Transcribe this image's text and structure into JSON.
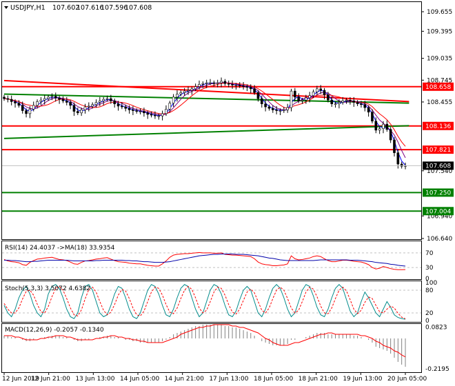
{
  "header": {
    "symbol": "USDJPY,H1",
    "open": "107.602",
    "high": "107.616",
    "low": "107.596",
    "close": "107.608"
  },
  "chart_data": [
    {
      "type": "candlestick",
      "title": "USDJPY,H1",
      "ylim": [
        106.64,
        109.8
      ],
      "y_ticks": [
        "109.655",
        "109.395",
        "109.035",
        "108.745",
        "108.455",
        "107.540",
        "106.940",
        "106.640"
      ],
      "x_ticks": [
        "12 Jun 2019",
        "12 Jun 21:00",
        "13 Jun 13:00",
        "14 Jun 05:00",
        "14 Jun 21:00",
        "17 Jun 13:00",
        "18 Jun 05:00",
        "18 Jun 21:00",
        "19 Jun 13:00",
        "20 Jun 05:00"
      ],
      "close_series": [
        108.5,
        108.49,
        108.46,
        108.44,
        108.41,
        108.34,
        108.3,
        108.36,
        108.41,
        108.46,
        108.48,
        108.5,
        108.52,
        108.53,
        108.51,
        108.49,
        108.47,
        108.45,
        108.41,
        108.33,
        108.31,
        108.35,
        108.39,
        108.4,
        108.42,
        108.45,
        108.47,
        108.49,
        108.5,
        108.47,
        108.43,
        108.4,
        108.39,
        108.37,
        108.35,
        108.34,
        108.33,
        108.33,
        108.31,
        108.29,
        108.28,
        108.27,
        108.27,
        108.3,
        108.36,
        108.44,
        108.52,
        108.56,
        108.58,
        108.6,
        108.61,
        108.63,
        108.66,
        108.69,
        108.7,
        108.71,
        108.71,
        108.7,
        108.71,
        108.73,
        108.7,
        108.69,
        108.68,
        108.68,
        108.67,
        108.66,
        108.65,
        108.63,
        108.58,
        108.5,
        108.43,
        108.39,
        108.37,
        108.35,
        108.34,
        108.34,
        108.35,
        108.38,
        108.6,
        108.52,
        108.47,
        108.48,
        108.51,
        108.54,
        108.59,
        108.63,
        108.61,
        108.55,
        108.48,
        108.43,
        108.43,
        108.45,
        108.47,
        108.48,
        108.47,
        108.45,
        108.43,
        108.42,
        108.38,
        108.32,
        108.2,
        108.08,
        108.1,
        108.16,
        108.09,
        107.95,
        107.78,
        107.63,
        107.6,
        107.608
      ],
      "horizontal_levels": [
        {
          "value": 108.658,
          "label": "108.658",
          "color": "#ff0000"
        },
        {
          "value": 108.136,
          "label": "108.136",
          "color": "#ff0000"
        },
        {
          "value": 107.821,
          "label": "107.821",
          "color": "#ff0000"
        },
        {
          "value": 107.25,
          "label": "107.250",
          "color": "#008000"
        },
        {
          "value": 107.004,
          "label": "107.004",
          "color": "#008000"
        }
      ],
      "current_price": "107.608",
      "trendlines": [
        {
          "color": "#ff0000",
          "points": [
            [
              0,
              108.74
            ],
            [
              110,
              108.46
            ]
          ]
        },
        {
          "color": "#008000",
          "points": [
            [
              0,
              108.56
            ],
            [
              110,
              108.44
            ]
          ]
        },
        {
          "color": "#008000",
          "points": [
            [
              0,
              107.97
            ],
            [
              110,
              108.14
            ]
          ]
        }
      ]
    },
    {
      "type": "line",
      "title": "RSI(14) 24.4037 ->MA(18) 33.9354",
      "ylim": [
        0,
        100
      ],
      "y_ticks": [
        "70",
        "30",
        "0"
      ],
      "series": [
        {
          "name": "RSI(14)",
          "color": "#ff0000",
          "values": [
            52,
            48,
            46,
            45,
            43,
            38,
            36,
            44,
            49,
            53,
            54,
            56,
            57,
            58,
            55,
            52,
            51,
            49,
            45,
            40,
            39,
            44,
            48,
            49,
            51,
            53,
            54,
            56,
            57,
            53,
            49,
            46,
            45,
            44,
            42,
            41,
            40,
            40,
            38,
            36,
            35,
            34,
            34,
            40,
            48,
            58,
            64,
            66,
            67,
            68,
            68,
            69,
            70,
            71,
            70,
            70,
            70,
            69,
            69,
            70,
            66,
            65,
            64,
            64,
            63,
            62,
            61,
            60,
            54,
            45,
            40,
            38,
            37,
            35,
            35,
            36,
            37,
            40,
            62,
            54,
            51,
            52,
            54,
            56,
            60,
            62,
            60,
            54,
            49,
            46,
            46,
            48,
            50,
            50,
            49,
            47,
            46,
            45,
            42,
            38,
            30,
            26,
            28,
            33,
            30,
            27,
            25,
            24,
            24,
            24.4
          ]
        },
        {
          "name": "MA(18)",
          "color": "#0000aa",
          "values": [
            50,
            50,
            49,
            49,
            48,
            47,
            46,
            46,
            47,
            47,
            48,
            49,
            50,
            50,
            50,
            50,
            50,
            50,
            49,
            48,
            48,
            48,
            48,
            48,
            48,
            49,
            49,
            50,
            50,
            50,
            50,
            50,
            50,
            49,
            49,
            48,
            48,
            47,
            46,
            46,
            45,
            44,
            44,
            44,
            45,
            46,
            48,
            50,
            52,
            54,
            56,
            58,
            60,
            62,
            63,
            64,
            65,
            66,
            66,
            67,
            67,
            67,
            67,
            66,
            66,
            66,
            65,
            64,
            63,
            62,
            60,
            58,
            56,
            55,
            53,
            51,
            50,
            49,
            49,
            49,
            49,
            49,
            49,
            49,
            49,
            50,
            51,
            51,
            51,
            51,
            51,
            51,
            51,
            51,
            50,
            50,
            50,
            49,
            48,
            47,
            46,
            44,
            43,
            42,
            41,
            39,
            38,
            36,
            35,
            33.9
          ]
        }
      ]
    },
    {
      "type": "line",
      "title": "Stoch(5,3,3) 3.5072 4.6382",
      "ylim": [
        0,
        100
      ],
      "y_ticks": [
        "100",
        "80",
        "20",
        "0"
      ],
      "series": [
        {
          "name": "Stoch %K",
          "color": "#008b8b",
          "values": [
            40,
            20,
            10,
            30,
            60,
            80,
            90,
            70,
            40,
            20,
            10,
            30,
            70,
            90,
            95,
            85,
            60,
            30,
            10,
            5,
            20,
            60,
            90,
            95,
            80,
            50,
            20,
            10,
            15,
            40,
            70,
            90,
            85,
            60,
            30,
            10,
            5,
            20,
            50,
            80,
            95,
            90,
            70,
            40,
            15,
            10,
            30,
            60,
            85,
            95,
            90,
            60,
            30,
            10,
            20,
            50,
            80,
            95,
            90,
            70,
            40,
            15,
            10,
            25,
            55,
            80,
            90,
            80,
            50,
            20,
            10,
            30,
            60,
            85,
            95,
            85,
            60,
            30,
            10,
            20,
            50,
            80,
            95,
            90,
            65,
            35,
            15,
            10,
            30,
            60,
            85,
            95,
            85,
            55,
            25,
            10,
            20,
            50,
            75,
            60,
            40,
            20,
            10,
            30,
            50,
            35,
            15,
            8,
            5,
            3.5
          ]
        },
        {
          "name": "Stoch %D",
          "color": "#ff0000",
          "values": [
            45,
            30,
            20,
            20,
            33,
            57,
            77,
            80,
            67,
            43,
            23,
            20,
            37,
            63,
            85,
            90,
            80,
            58,
            33,
            15,
            12,
            28,
            57,
            82,
            88,
            75,
            50,
            27,
            15,
            22,
            42,
            67,
            82,
            78,
            58,
            33,
            15,
            12,
            25,
            50,
            75,
            88,
            85,
            67,
            42,
            22,
            18,
            33,
            58,
            80,
            90,
            82,
            60,
            33,
            20,
            27,
            50,
            75,
            88,
            85,
            67,
            42,
            22,
            17,
            30,
            53,
            75,
            83,
            73,
            50,
            27,
            20,
            33,
            58,
            80,
            88,
            80,
            58,
            33,
            20,
            27,
            50,
            75,
            88,
            83,
            63,
            38,
            20,
            18,
            33,
            58,
            80,
            88,
            78,
            55,
            30,
            18,
            27,
            48,
            62,
            58,
            40,
            23,
            20,
            30,
            38,
            33,
            19,
            9,
            4.6
          ]
        }
      ]
    },
    {
      "type": "bar",
      "title": "MACD(12,26,9) -0.2057 -0.1340",
      "ylim": [
        -0.24,
        0.1
      ],
      "y_ticks": [
        "0.0823",
        "-0.2195"
      ],
      "series": [
        {
          "name": "MACD histogram",
          "color": "#808080",
          "values": [
            0.02,
            0.02,
            0.01,
            0.01,
            0.0,
            -0.01,
            -0.02,
            -0.02,
            -0.01,
            0.0,
            0.0,
            0.01,
            0.01,
            0.02,
            0.02,
            0.02,
            0.01,
            0.01,
            0.0,
            -0.01,
            -0.02,
            -0.02,
            -0.01,
            -0.01,
            0.0,
            0.0,
            0.01,
            0.01,
            0.02,
            0.02,
            0.01,
            0.01,
            0.0,
            -0.01,
            -0.01,
            -0.02,
            -0.02,
            -0.03,
            -0.03,
            -0.03,
            -0.03,
            -0.03,
            -0.03,
            -0.02,
            -0.01,
            0.01,
            0.03,
            0.04,
            0.05,
            0.06,
            0.07,
            0.08,
            0.09,
            0.09,
            0.1,
            0.1,
            0.1,
            0.1,
            0.1,
            0.1,
            0.09,
            0.09,
            0.08,
            0.08,
            0.07,
            0.06,
            0.05,
            0.04,
            0.02,
            0.0,
            -0.02,
            -0.03,
            -0.04,
            -0.05,
            -0.05,
            -0.05,
            -0.05,
            -0.04,
            -0.01,
            -0.01,
            0.0,
            0.0,
            0.01,
            0.02,
            0.03,
            0.04,
            0.04,
            0.04,
            0.03,
            0.03,
            0.03,
            0.03,
            0.03,
            0.03,
            0.03,
            0.02,
            0.02,
            0.01,
            0.0,
            -0.01,
            -0.03,
            -0.06,
            -0.07,
            -0.08,
            -0.09,
            -0.11,
            -0.14,
            -0.17,
            -0.19,
            -0.2057
          ]
        },
        {
          "name": "Signal",
          "color": "#ff0000",
          "values": [
            0.02,
            0.02,
            0.02,
            0.01,
            0.01,
            0.0,
            -0.01,
            -0.01,
            -0.01,
            -0.01,
            0.0,
            0.0,
            0.01,
            0.01,
            0.02,
            0.02,
            0.02,
            0.01,
            0.01,
            0.0,
            -0.01,
            -0.01,
            -0.01,
            -0.01,
            -0.01,
            0.0,
            0.0,
            0.01,
            0.01,
            0.02,
            0.02,
            0.01,
            0.01,
            0.0,
            0.0,
            -0.01,
            -0.01,
            -0.02,
            -0.02,
            -0.03,
            -0.03,
            -0.03,
            -0.03,
            -0.03,
            -0.02,
            -0.01,
            0.0,
            0.01,
            0.03,
            0.04,
            0.05,
            0.06,
            0.07,
            0.08,
            0.08,
            0.09,
            0.09,
            0.1,
            0.1,
            0.1,
            0.1,
            0.1,
            0.09,
            0.09,
            0.08,
            0.08,
            0.07,
            0.06,
            0.05,
            0.04,
            0.02,
            0.0,
            -0.01,
            -0.03,
            -0.04,
            -0.05,
            -0.05,
            -0.05,
            -0.04,
            -0.03,
            -0.03,
            -0.02,
            -0.01,
            0.0,
            0.01,
            0.02,
            0.03,
            0.03,
            0.04,
            0.04,
            0.03,
            0.03,
            0.03,
            0.03,
            0.03,
            0.03,
            0.03,
            0.02,
            0.02,
            0.01,
            0.0,
            -0.02,
            -0.03,
            -0.05,
            -0.06,
            -0.07,
            -0.09,
            -0.1,
            -0.12,
            -0.134
          ]
        }
      ]
    }
  ]
}
